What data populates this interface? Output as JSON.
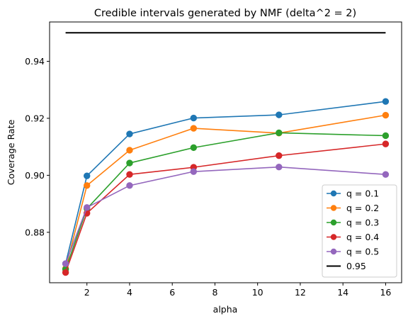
{
  "chart_data": {
    "type": "line",
    "title": "Credible intervals generated by NMF (delta^2 = 2)",
    "xlabel": "alpha",
    "ylabel": "Coverage Rate",
    "xlim": [
      0.25,
      16.75
    ],
    "ylim": [
      0.8623,
      0.9538
    ],
    "xticks": [
      2,
      4,
      6,
      8,
      10,
      12,
      14,
      16
    ],
    "yticks": [
      0.88,
      0.9,
      0.92,
      0.94
    ],
    "ytick_labels": [
      "0.88",
      "0.90",
      "0.92",
      "0.94"
    ],
    "grid": false,
    "legend_position": "lower-right",
    "x": [
      1,
      2,
      4,
      7,
      11,
      16
    ],
    "series": [
      {
        "name": "q = 0.1",
        "color": "#1f77b4",
        "values": [
          0.869,
          0.8998,
          0.9145,
          0.9201,
          0.9212,
          0.9259
        ]
      },
      {
        "name": "q = 0.2",
        "color": "#ff7f0e",
        "values": [
          0.8673,
          0.8964,
          0.9088,
          0.9165,
          0.9148,
          0.9211
        ]
      },
      {
        "name": "q = 0.3",
        "color": "#2ca02c",
        "values": [
          0.867,
          0.8883,
          0.9043,
          0.9097,
          0.9149,
          0.9139
        ]
      },
      {
        "name": "q = 0.4",
        "color": "#d62728",
        "values": [
          0.8659,
          0.8867,
          0.9003,
          0.9028,
          0.9069,
          0.911
        ]
      },
      {
        "name": "q = 0.5",
        "color": "#9467bd",
        "values": [
          0.869,
          0.8887,
          0.8964,
          0.9013,
          0.9029,
          0.9003
        ]
      }
    ],
    "reference_line": {
      "name": "0.95",
      "color": "#000000",
      "value": 0.95,
      "x_range": [
        1,
        16
      ]
    }
  }
}
